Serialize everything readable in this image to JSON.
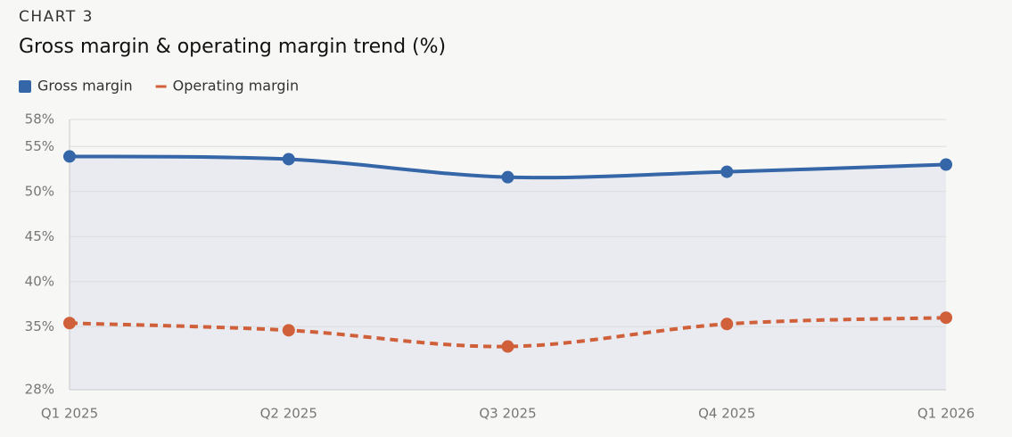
{
  "chart_data": {
    "type": "line",
    "label": "CHART 3",
    "title": "Gross margin & operating margin trend (%)",
    "categories": [
      "Q1 2025",
      "Q2 2025",
      "Q3 2025",
      "Q4 2025",
      "Q1 2026"
    ],
    "series": [
      {
        "name": "Gross margin",
        "color": "#3566a8",
        "line_style": "solid",
        "area_fill": "#e9ebf1",
        "values": [
          53.9,
          53.6,
          51.6,
          52.2,
          53.0
        ]
      },
      {
        "name": "Operating margin",
        "color": "#d0603a",
        "line_style": "dashed",
        "values": [
          35.4,
          34.6,
          32.8,
          35.3,
          36.0
        ]
      }
    ],
    "ylim": [
      28,
      58
    ],
    "yticks": [
      {
        "value": 28,
        "label": "28%"
      },
      {
        "value": 35,
        "label": "35%"
      },
      {
        "value": 40,
        "label": "40%"
      },
      {
        "value": 45,
        "label": "45%"
      },
      {
        "value": 50,
        "label": "50%"
      },
      {
        "value": 55,
        "label": "55%"
      },
      {
        "value": 58,
        "label": "58%"
      }
    ],
    "grid": true,
    "legend": "top-left"
  }
}
